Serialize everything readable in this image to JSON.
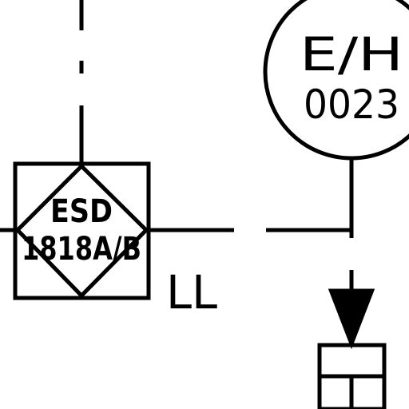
{
  "diagram": {
    "esd_block": {
      "line1": "ESD",
      "line2": "1818A/B"
    },
    "level_tag": "LL",
    "instrument_bubble": {
      "line1": "E/H",
      "line2": "0023"
    },
    "colors": {
      "line": "#000000",
      "background": "#ffffff"
    },
    "symbols": [
      "interlock-diamond-in-square",
      "instrument-bubble",
      "flow-arrow",
      "actuator-box"
    ]
  }
}
